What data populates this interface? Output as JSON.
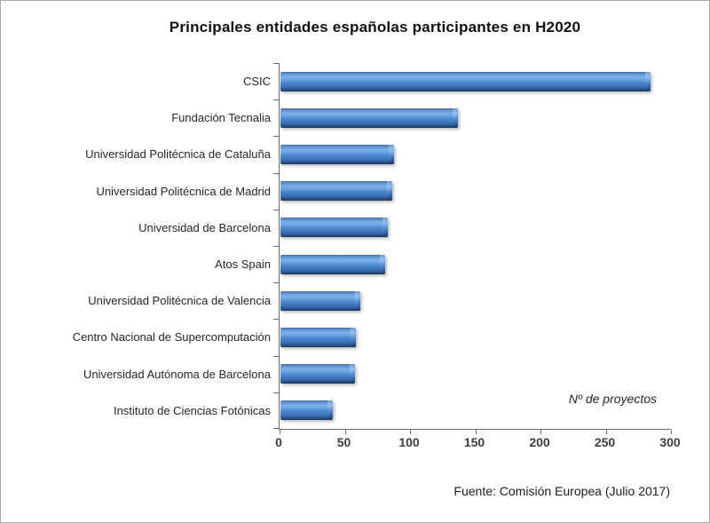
{
  "chart_data": {
    "type": "bar",
    "orientation": "horizontal",
    "title": "Principales entidades españolas participantes en H2020",
    "categories": [
      "CSIC",
      "Fundación Tecnalia",
      "Universidad Politécnica de Cataluña",
      "Universidad Politécnica de Madrid",
      "Universidad de Barcelona",
      "Atos Spain",
      "Universidad Politécnica de Valencia",
      "Centro Nacional de Supercomputación",
      "Universidad Autónoma de Barcelona",
      "Instituto de Ciencias Fotónicas"
    ],
    "values": [
      284,
      136,
      87,
      86,
      82,
      80,
      61,
      58,
      57,
      40
    ],
    "xlabel": "Nº de proyectos",
    "ylabel": "",
    "xlim": [
      0,
      300
    ],
    "xticks": [
      0,
      50,
      100,
      150,
      200,
      250,
      300
    ],
    "grid": false,
    "legend": "none",
    "source": "Fuente: Comisión Europea (Julio 2017)",
    "bar_color": "#4b86cc",
    "bar_edge_color": "#1f416f",
    "axis_color": "#6c6c6c",
    "title_color": "#111111"
  }
}
